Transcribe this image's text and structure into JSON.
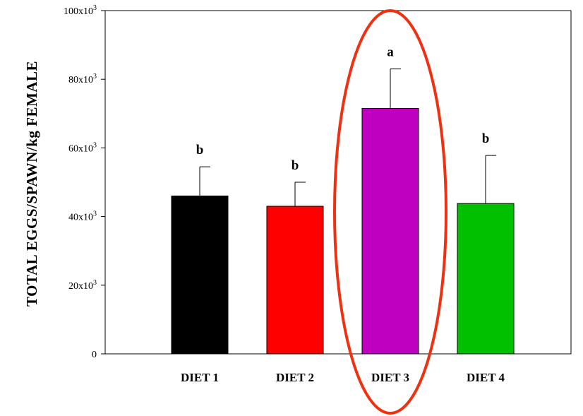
{
  "chart_data": {
    "type": "bar",
    "title": "",
    "xlabel": "",
    "ylabel": "TOTAL EGGS/SPAWN/kg FEMALE",
    "ylim": [
      0,
      100000
    ],
    "y_ticks": [
      {
        "value": 0,
        "label": "0"
      },
      {
        "value": 20000,
        "label": "20x10",
        "exp": "3"
      },
      {
        "value": 40000,
        "label": "40x10",
        "exp": "3"
      },
      {
        "value": 60000,
        "label": "60x10",
        "exp": "3"
      },
      {
        "value": 80000,
        "label": "80x10",
        "exp": "3"
      },
      {
        "value": 100000,
        "label": "100x10",
        "exp": "3"
      }
    ],
    "categories": [
      "DIET 1",
      "DIET 2",
      "DIET 3",
      "DIET 4"
    ],
    "values": [
      46000,
      43000,
      71500,
      43800
    ],
    "error_upper": [
      8500,
      7000,
      11500,
      14000
    ],
    "significance_labels": [
      "b",
      "b",
      "a",
      "b"
    ],
    "colors": [
      "#000000",
      "#ff0000",
      "#c000c0",
      "#00c000"
    ],
    "highlight": {
      "category_index": 2,
      "shape": "ellipse",
      "color": "#f03010"
    },
    "grid": false,
    "legend": "none"
  }
}
